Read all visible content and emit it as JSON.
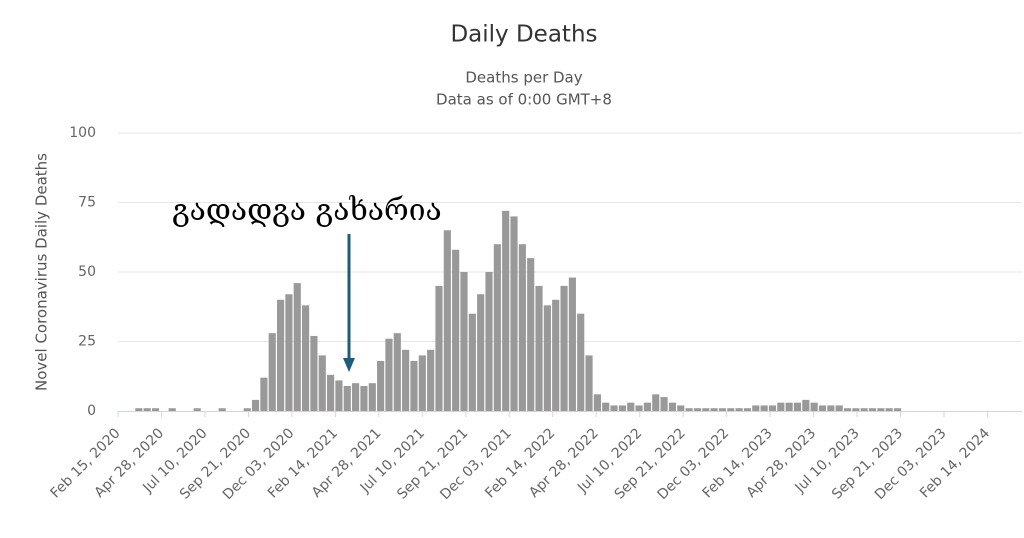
{
  "chart_data": {
    "type": "bar",
    "title": "Daily Deaths",
    "subtitle": [
      "Deaths per Day",
      "Data as of 0:00 GMT+8"
    ],
    "y_label": "Novel Coronavirus Daily Deaths",
    "annotation": "გადადგა გახარია",
    "color": "#999999",
    "grid": true,
    "x": [
      "2020-02-15",
      "2020-02-29",
      "2020-03-14",
      "2020-03-28",
      "2020-04-11",
      "2020-04-25",
      "2020-05-09",
      "2020-05-23",
      "2020-06-06",
      "2020-06-20",
      "2020-07-04",
      "2020-07-18",
      "2020-08-01",
      "2020-08-15",
      "2020-08-29",
      "2020-09-12",
      "2020-09-26",
      "2020-10-10",
      "2020-10-24",
      "2020-11-07",
      "2020-11-21",
      "2020-12-05",
      "2020-12-19",
      "2021-01-02",
      "2021-01-16",
      "2021-01-30",
      "2021-02-13",
      "2021-02-27",
      "2021-03-13",
      "2021-03-27",
      "2021-04-10",
      "2021-04-24",
      "2021-05-08",
      "2021-05-22",
      "2021-06-05",
      "2021-06-19",
      "2021-07-03",
      "2021-07-17",
      "2021-07-31",
      "2021-08-14",
      "2021-08-28",
      "2021-09-11",
      "2021-09-25",
      "2021-10-09",
      "2021-10-23",
      "2021-11-06",
      "2021-11-20",
      "2021-12-04",
      "2021-12-18",
      "2022-01-01",
      "2022-01-15",
      "2022-01-29",
      "2022-02-12",
      "2022-02-26",
      "2022-03-12",
      "2022-03-26",
      "2022-04-09",
      "2022-04-23",
      "2022-05-07",
      "2022-05-21",
      "2022-06-04",
      "2022-06-18",
      "2022-07-02",
      "2022-07-16",
      "2022-07-30",
      "2022-08-13",
      "2022-08-27",
      "2022-09-10",
      "2022-09-24",
      "2022-10-08",
      "2022-10-22",
      "2022-11-05",
      "2022-11-19",
      "2022-12-03",
      "2022-12-17",
      "2022-12-31",
      "2023-01-14",
      "2023-01-28",
      "2023-02-11",
      "2023-02-25",
      "2023-03-11",
      "2023-03-25",
      "2023-04-08",
      "2023-04-22",
      "2023-05-06",
      "2023-05-20",
      "2023-06-03",
      "2023-06-17",
      "2023-07-01",
      "2023-07-15",
      "2023-07-29",
      "2023-08-12",
      "2023-08-26",
      "2023-09-09"
    ],
    "values": [
      0,
      0,
      1,
      1,
      1,
      0,
      1,
      0,
      0,
      1,
      0,
      0,
      1,
      0,
      0,
      1,
      4,
      12,
      28,
      40,
      42,
      46,
      38,
      27,
      20,
      13,
      11,
      9,
      10,
      9,
      10,
      18,
      26,
      28,
      22,
      18,
      20,
      22,
      45,
      65,
      58,
      50,
      35,
      42,
      50,
      60,
      72,
      70,
      60,
      55,
      45,
      38,
      40,
      45,
      48,
      35,
      20,
      6,
      3,
      2,
      2,
      3,
      2,
      3,
      6,
      5,
      3,
      2,
      1,
      1,
      1,
      1,
      1,
      1,
      1,
      1,
      2,
      2,
      2,
      3,
      3,
      3,
      4,
      3,
      2,
      2,
      2,
      1,
      1,
      1,
      1,
      1,
      1,
      1
    ],
    "xlim": [
      "2020-02-15",
      "2024-04-12"
    ],
    "xticks": [
      {
        "value": "2020-02-15",
        "label": "Feb 15, 2020"
      },
      {
        "value": "2020-04-28",
        "label": "Apr 28, 2020"
      },
      {
        "value": "2020-07-10",
        "label": "Jul 10, 2020"
      },
      {
        "value": "2020-09-21",
        "label": "Sep 21, 2020"
      },
      {
        "value": "2020-12-03",
        "label": "Dec 03, 2020"
      },
      {
        "value": "2021-02-14",
        "label": "Feb 14, 2021"
      },
      {
        "value": "2021-04-28",
        "label": "Apr 28, 2021"
      },
      {
        "value": "2021-07-10",
        "label": "Jul 10, 2021"
      },
      {
        "value": "2021-09-21",
        "label": "Sep 21, 2021"
      },
      {
        "value": "2021-12-03",
        "label": "Dec 03, 2021"
      },
      {
        "value": "2022-02-14",
        "label": "Feb 14, 2022"
      },
      {
        "value": "2022-04-28",
        "label": "Apr 28, 2022"
      },
      {
        "value": "2022-07-10",
        "label": "Jul 10, 2022"
      },
      {
        "value": "2022-09-21",
        "label": "Sep 21, 2022"
      },
      {
        "value": "2022-12-03",
        "label": "Dec 03, 2022"
      },
      {
        "value": "2023-02-14",
        "label": "Feb 14, 2023"
      },
      {
        "value": "2023-04-28",
        "label": "Apr 28, 2023"
      },
      {
        "value": "2023-07-10",
        "label": "Jul 10, 2023"
      },
      {
        "value": "2023-09-21",
        "label": "Sep 21, 2023"
      },
      {
        "value": "2023-12-03",
        "label": "Dec 03, 2023"
      },
      {
        "value": "2024-02-14",
        "label": "Feb 14, 2024"
      }
    ],
    "ylim": [
      0,
      100
    ],
    "yticks": [
      0,
      25,
      50,
      75,
      100
    ]
  }
}
